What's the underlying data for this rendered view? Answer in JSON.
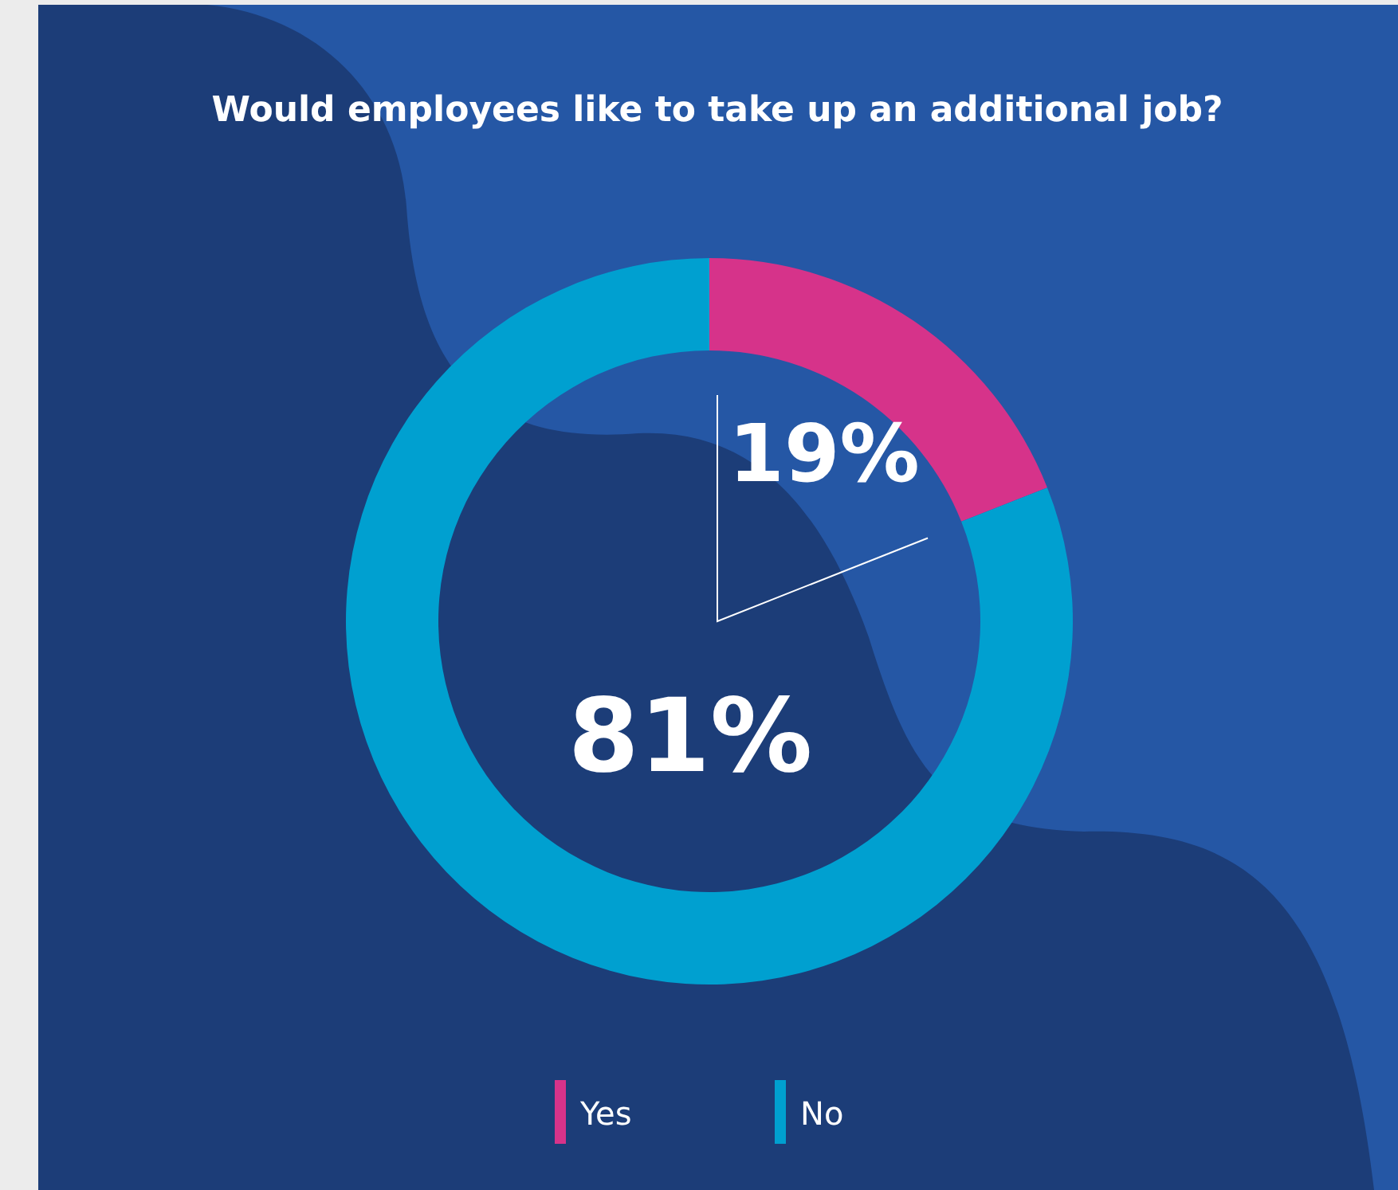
{
  "chart_data": {
    "type": "donut",
    "title": "Would employees like to take up an additional job?",
    "categories": [
      "Yes",
      "No"
    ],
    "values": [
      19,
      81
    ],
    "colors": [
      "#d6338a",
      "#00a0d0"
    ],
    "value_labels": [
      "19%",
      "81%"
    ],
    "legend": "bottom"
  }
}
